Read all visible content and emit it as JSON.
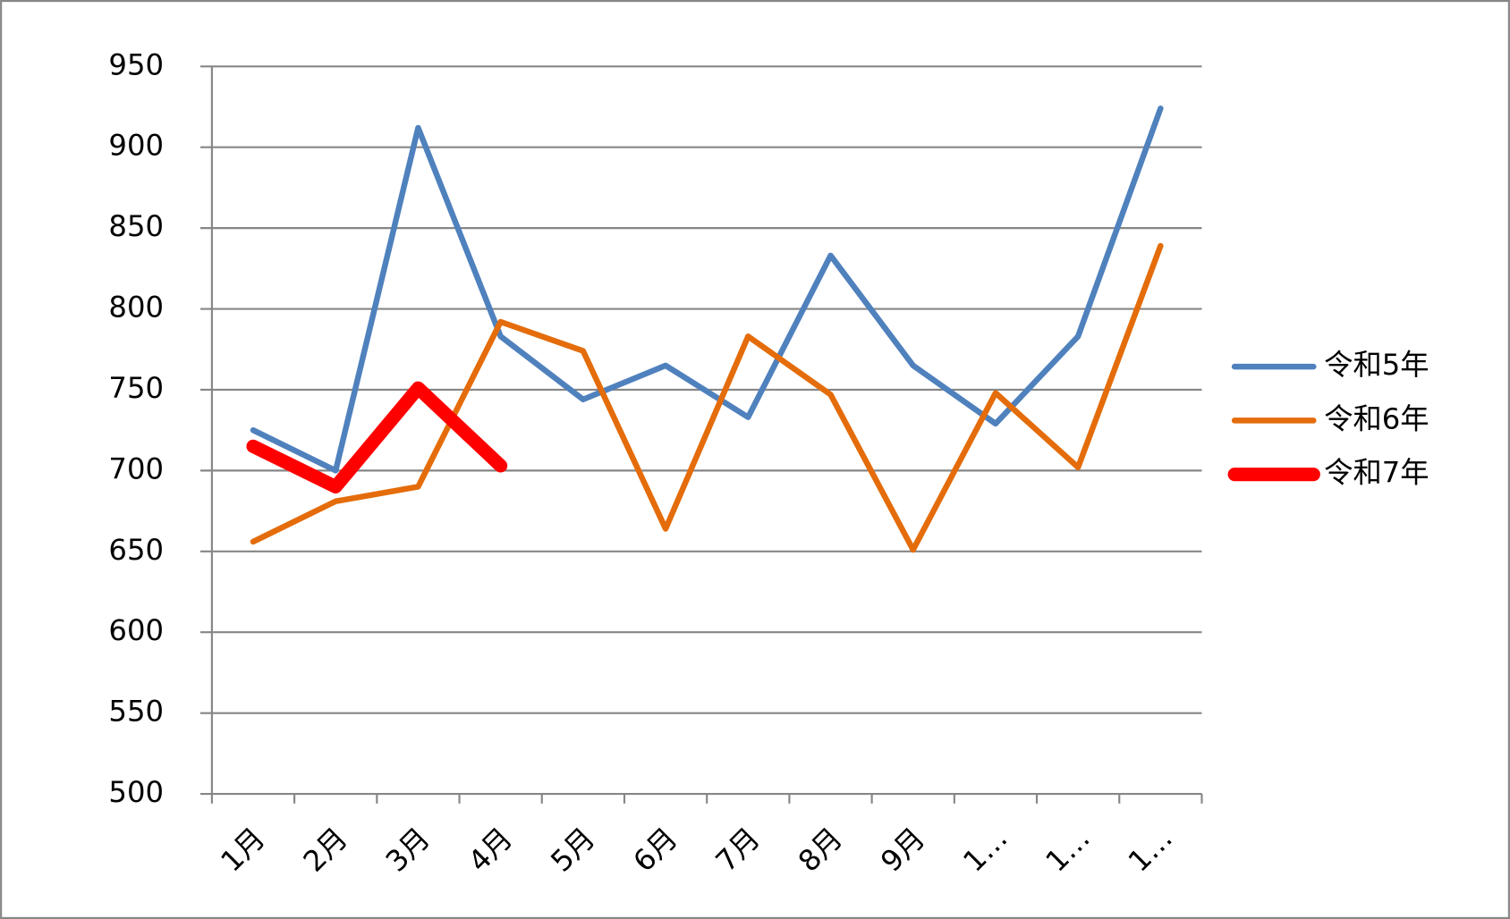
{
  "chart_data": {
    "type": "line",
    "categories": [
      "1月",
      "2月",
      "3月",
      "4月",
      "5月",
      "6月",
      "7月",
      "8月",
      "9月",
      "1…",
      "1…",
      "1…"
    ],
    "series": [
      {
        "name": "令和5年",
        "color": "#4f81bd",
        "values": [
          725,
          700,
          912,
          783,
          744,
          765,
          733,
          833,
          765,
          729,
          783,
          924
        ]
      },
      {
        "name": "令和6年",
        "color": "#e46c0a",
        "values": [
          656,
          681,
          690,
          792,
          774,
          664,
          783,
          747,
          651,
          748,
          702,
          839
        ]
      },
      {
        "name": "令和7年",
        "color": "#ff0000",
        "values": [
          715,
          690,
          751,
          703,
          null,
          null,
          null,
          null,
          null,
          null,
          null,
          null
        ]
      }
    ],
    "ylim": [
      500,
      950
    ],
    "yticks": [
      500,
      550,
      600,
      650,
      700,
      750,
      800,
      850,
      900,
      950
    ],
    "grid": true,
    "legend": "right"
  }
}
